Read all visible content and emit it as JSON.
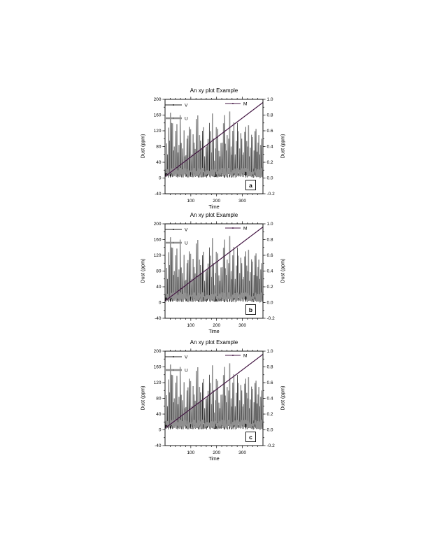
{
  "page": {
    "background": "#ffffff"
  },
  "chart_data": {
    "type": "line",
    "title": "An xy plot Example",
    "xlabel": "Time",
    "ylabel_left": "Dust (ppm)",
    "ylabel_right": "Dust (ppm)",
    "xlim": [
      0,
      380
    ],
    "x_major_ticks": [
      100,
      200,
      300
    ],
    "x_major_tick_labels": [
      "100",
      "200",
      "300"
    ],
    "x_minor_step": 20,
    "ylim_left": [
      -40,
      200
    ],
    "y_left_ticks": [
      200,
      160,
      120,
      80,
      40,
      0,
      -40
    ],
    "y_left_tick_labels": [
      "200",
      "160",
      "120",
      "80",
      "40",
      "0",
      "-40"
    ],
    "y_left_minor_step": 20,
    "ylim_right": [
      -0.2,
      1.0
    ],
    "y_right_ticks": [
      1.0,
      0.8,
      0.6,
      0.4,
      0.2,
      0.0,
      -0.2
    ],
    "y_right_tick_labels": [
      "1.0",
      "0.8",
      "0.6",
      "0.4",
      "0.2",
      "0.0",
      "-0.2"
    ],
    "y_right_minor_step": 0.1,
    "grid": false,
    "legend": {
      "position": "top-inside",
      "entries": [
        {
          "label": "V",
          "color": "#1b1b1b",
          "style": "thin-line-marker"
        },
        {
          "label": "U",
          "color": "#909090",
          "style": "thick-line-marker"
        },
        {
          "label": "M",
          "color": "#441744",
          "style": "thin-line-marker"
        }
      ]
    },
    "panels": [
      {
        "label": "a"
      },
      {
        "label": "b"
      },
      {
        "label": "c"
      }
    ],
    "series": [
      {
        "name": "V",
        "axis": "left",
        "color": "#1b1b1b",
        "stroke_width": 0.7,
        "kind": "noise",
        "seed": 5,
        "noise_min": 1,
        "noise_max": 19,
        "spikes": [
          [
            10,
            60
          ],
          [
            18,
            95
          ],
          [
            25,
            140
          ],
          [
            33,
            70
          ],
          [
            42,
            120
          ],
          [
            50,
            65
          ],
          [
            59,
            160
          ],
          [
            68,
            75
          ],
          [
            78,
            55
          ],
          [
            85,
            100
          ],
          [
            94,
            130
          ],
          [
            104,
            60
          ],
          [
            113,
            90
          ],
          [
            121,
            150
          ],
          [
            131,
            70
          ],
          [
            138,
            95
          ],
          [
            145,
            120
          ],
          [
            154,
            55
          ],
          [
            163,
            85
          ],
          [
            172,
            140
          ],
          [
            181,
            65
          ],
          [
            188,
            100
          ],
          [
            196,
            75
          ],
          [
            205,
            125
          ],
          [
            213,
            55
          ],
          [
            222,
            90
          ],
          [
            231,
            160
          ],
          [
            238,
            70
          ],
          [
            247,
            100
          ],
          [
            256,
            80
          ],
          [
            263,
            120
          ],
          [
            272,
            60
          ],
          [
            281,
            140
          ],
          [
            290,
            75
          ],
          [
            298,
            100
          ],
          [
            306,
            65
          ],
          [
            313,
            130
          ],
          [
            321,
            80
          ],
          [
            328,
            55
          ],
          [
            336,
            110
          ],
          [
            345,
            70
          ],
          [
            353,
            125
          ],
          [
            361,
            90
          ],
          [
            368,
            60
          ],
          [
            375,
            100
          ]
        ]
      },
      {
        "name": "U",
        "axis": "left",
        "color": "#909090",
        "stroke_width": 1.5,
        "kind": "noise",
        "seed": 11,
        "noise_min": 2,
        "noise_max": 26,
        "spikes": [
          [
            6,
            88
          ],
          [
            14,
            128
          ],
          [
            21,
            166
          ],
          [
            29,
            139
          ],
          [
            36,
            80
          ],
          [
            46,
            137
          ],
          [
            54,
            84
          ],
          [
            63,
            89
          ],
          [
            74,
            121
          ],
          [
            81,
            58
          ],
          [
            89,
            108
          ],
          [
            99,
            124
          ],
          [
            109,
            111
          ],
          [
            117,
            74
          ],
          [
            127,
            159
          ],
          [
            134,
            109
          ],
          [
            141,
            74
          ],
          [
            149,
            129
          ],
          [
            159,
            79
          ],
          [
            167,
            99
          ],
          [
            177,
            119
          ],
          [
            184,
            164
          ],
          [
            191,
            44
          ],
          [
            199,
            129
          ],
          [
            209,
            69
          ],
          [
            217,
            89
          ],
          [
            227,
            139
          ],
          [
            234,
            87
          ],
          [
            241,
            109
          ],
          [
            251,
            169
          ],
          [
            259,
            59
          ],
          [
            267,
            141
          ],
          [
            277,
            94
          ],
          [
            284,
            119
          ],
          [
            294,
            114
          ],
          [
            301,
            59
          ],
          [
            309,
            117
          ],
          [
            317,
            94
          ],
          [
            324,
            134
          ],
          [
            331,
            77
          ],
          [
            339,
            104
          ],
          [
            349,
            119
          ],
          [
            357,
            67
          ],
          [
            364,
            109
          ],
          [
            371,
            84
          ]
        ]
      },
      {
        "name": "M",
        "axis": "right",
        "color": "#441744",
        "stroke_width": 1.2,
        "kind": "straight",
        "points": [
          [
            0,
            0.02
          ],
          [
            380,
            0.96
          ]
        ]
      }
    ]
  }
}
